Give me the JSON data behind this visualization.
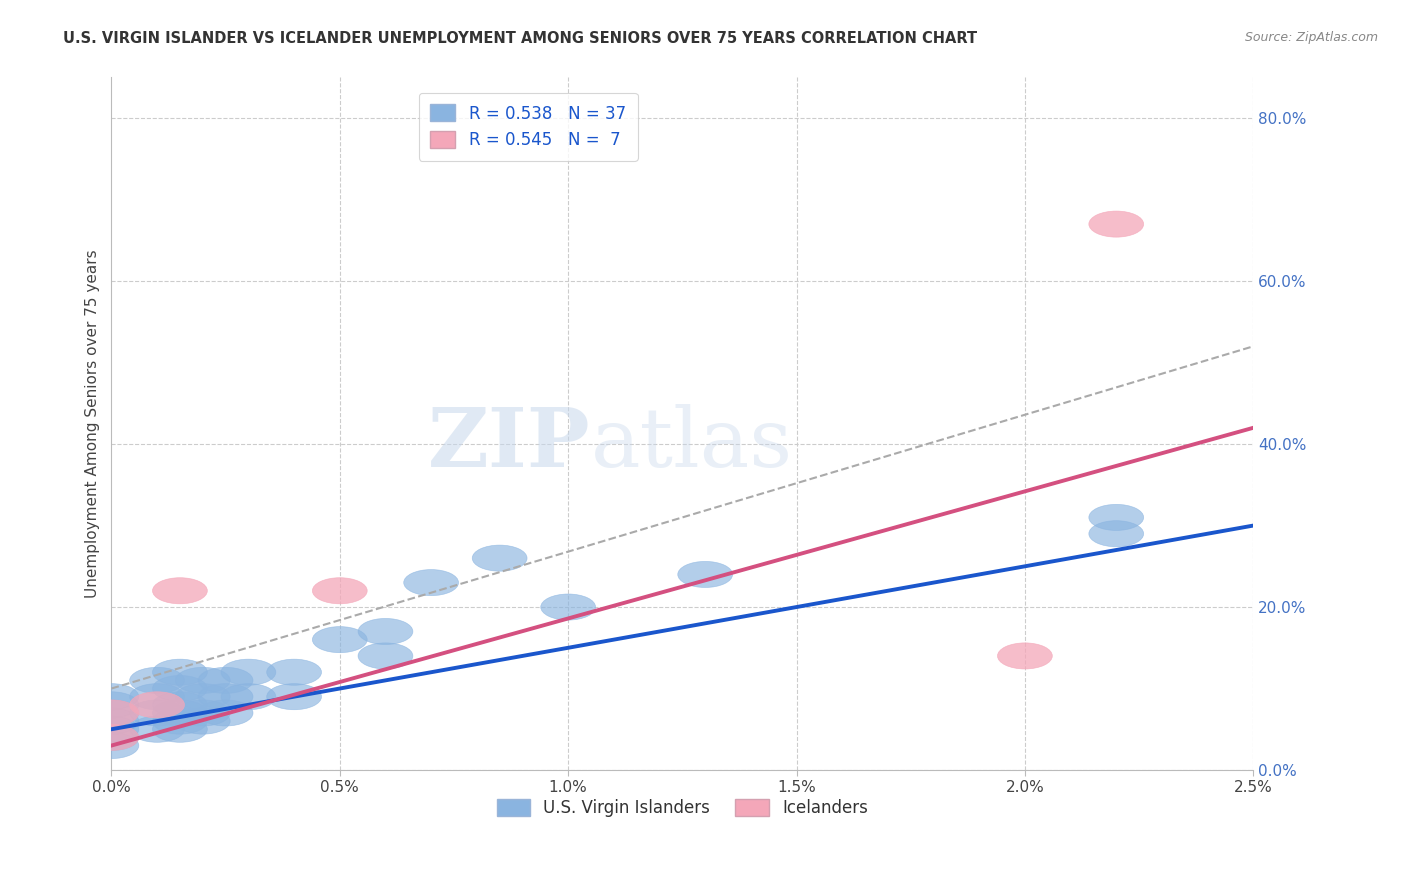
{
  "title": "U.S. VIRGIN ISLANDER VS ICELANDER UNEMPLOYMENT AMONG SENIORS OVER 75 YEARS CORRELATION CHART",
  "source": "Source: ZipAtlas.com",
  "ylabel": "Unemployment Among Seniors over 75 years",
  "xlim": [
    0.0,
    0.025
  ],
  "ylim": [
    0.0,
    0.85
  ],
  "xticks": [
    0.0,
    0.005,
    0.01,
    0.015,
    0.02,
    0.025
  ],
  "xticklabels": [
    "0.0%",
    "0.5%",
    "1.0%",
    "1.5%",
    "2.0%",
    "2.5%"
  ],
  "yticks_right": [
    0.0,
    0.2,
    0.4,
    0.6,
    0.8
  ],
  "ytick_right_labels": [
    "0.0%",
    "20.0%",
    "40.0%",
    "60.0%",
    "80.0%"
  ],
  "blue_color": "#8ab4e0",
  "pink_color": "#f4a7b9",
  "blue_line_color": "#1a56cc",
  "pink_line_color": "#d45080",
  "dashed_line_color": "#aaaaaa",
  "background_color": "#ffffff",
  "grid_color": "#cccccc",
  "watermark_zip": "ZIP",
  "watermark_atlas": "atlas",
  "blue_scatter_x": [
    0.0,
    0.0,
    0.0,
    0.0,
    0.0,
    0.0,
    0.0,
    0.001,
    0.001,
    0.001,
    0.001,
    0.0015,
    0.0015,
    0.0015,
    0.0015,
    0.0015,
    0.0015,
    0.002,
    0.002,
    0.002,
    0.002,
    0.0025,
    0.0025,
    0.0025,
    0.003,
    0.003,
    0.004,
    0.004,
    0.005,
    0.006,
    0.006,
    0.007,
    0.0085,
    0.01,
    0.013,
    0.022,
    0.022
  ],
  "blue_scatter_y": [
    0.03,
    0.04,
    0.05,
    0.06,
    0.07,
    0.08,
    0.09,
    0.05,
    0.07,
    0.09,
    0.11,
    0.05,
    0.06,
    0.07,
    0.08,
    0.1,
    0.12,
    0.06,
    0.07,
    0.09,
    0.11,
    0.07,
    0.09,
    0.11,
    0.09,
    0.12,
    0.09,
    0.12,
    0.16,
    0.14,
    0.17,
    0.23,
    0.26,
    0.2,
    0.24,
    0.29,
    0.31
  ],
  "pink_scatter_x": [
    0.0,
    0.0,
    0.001,
    0.0015,
    0.005,
    0.02,
    0.022
  ],
  "pink_scatter_y": [
    0.04,
    0.07,
    0.08,
    0.22,
    0.22,
    0.14,
    0.67
  ],
  "blue_trend_x": [
    0.0,
    0.025
  ],
  "blue_trend_y": [
    0.05,
    0.3
  ],
  "pink_trend_x": [
    0.0,
    0.025
  ],
  "pink_trend_y": [
    0.03,
    0.42
  ],
  "dashed_trend_x": [
    0.0,
    0.025
  ],
  "dashed_trend_y": [
    0.1,
    0.52
  ]
}
